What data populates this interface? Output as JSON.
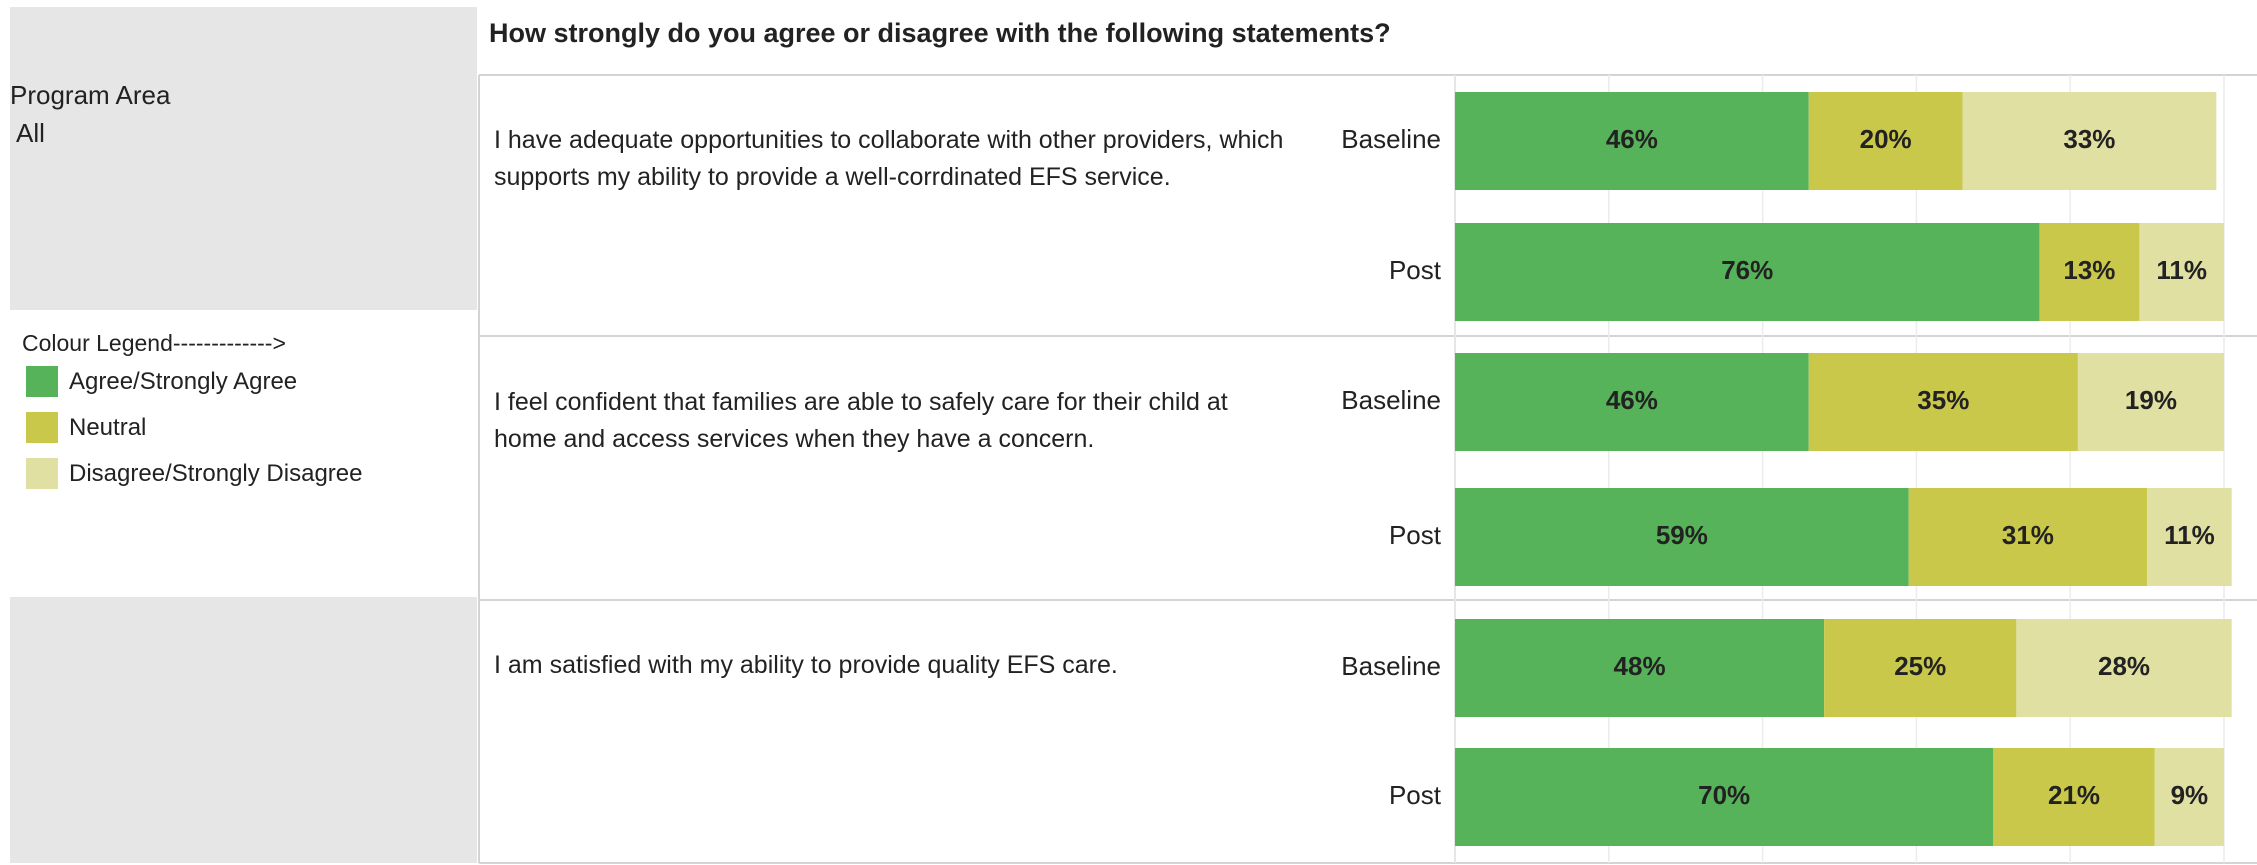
{
  "filter": {
    "label": "Program Area",
    "value": "All"
  },
  "legend": {
    "title": "Colour Legend------------->"
  },
  "chart_data": {
    "type": "bar",
    "orientation": "horizontal",
    "stacked": true,
    "title": "How strongly do you agree or disagree with the following statements?",
    "questions": [
      "I have adequate opportunities to collaborate with other providers, which supports my ability to provide a well-corrdinated EFS service.",
      "I feel confident that families are able to safely care for their child at home and access services when they have a concern.",
      "I am satisfied with my ability to provide quality EFS care."
    ],
    "categories": [
      "Baseline",
      "Post",
      "Baseline",
      "Post",
      "Baseline",
      "Post"
    ],
    "series": [
      {
        "name": "Agree/Strongly Agree",
        "color": "#57b35a",
        "values": [
          46,
          76,
          46,
          59,
          48,
          70
        ],
        "value_labels": [
          "46%",
          "76%",
          "46%",
          "59%",
          "48%",
          "70%"
        ]
      },
      {
        "name": "Neutral",
        "color": "#c9c84b",
        "values": [
          20,
          13,
          35,
          31,
          25,
          21
        ],
        "value_labels": [
          "20%",
          "13%",
          "35%",
          "31%",
          "25%",
          "21%"
        ]
      },
      {
        "name": "Disagree/Strongly Disagree",
        "color": "#e1e0a3",
        "values": [
          33,
          11,
          19,
          11,
          28,
          9
        ],
        "value_labels": [
          "33%",
          "11%",
          "19%",
          "11%",
          "28%",
          "9%"
        ]
      }
    ],
    "xlim": [
      0,
      100
    ],
    "xticks": [
      0,
      20,
      40,
      60,
      80,
      100
    ],
    "grid": true
  }
}
